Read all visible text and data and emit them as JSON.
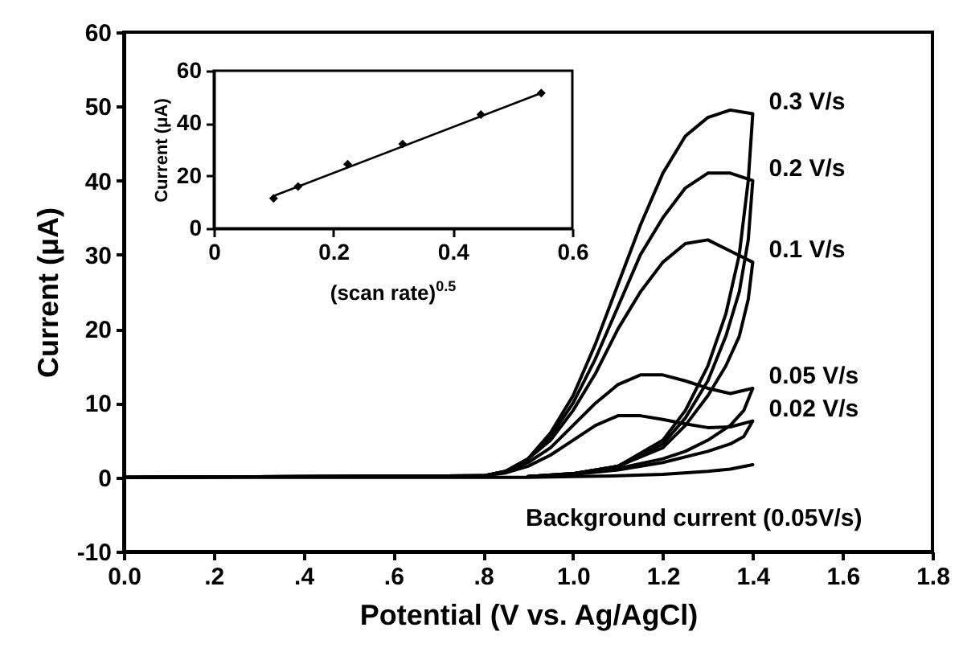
{
  "chart_data": [
    {
      "type": "line",
      "xlabel": "Potential (V vs. Ag/AgCl)",
      "ylabel": "Current (μA)",
      "xlim": [
        0,
        1.8
      ],
      "ylim": [
        -10,
        60
      ],
      "xticks": [
        {
          "value": 0,
          "label": "0.0"
        },
        {
          "value": 0.2,
          "label": ".2"
        },
        {
          "value": 0.4,
          "label": ".4"
        },
        {
          "value": 0.6,
          "label": ".6"
        },
        {
          "value": 0.8,
          "label": ".8"
        },
        {
          "value": 1,
          "label": "1.0"
        },
        {
          "value": 1.2,
          "label": "1.2"
        },
        {
          "value": 1.4,
          "label": "1.4"
        },
        {
          "value": 1.6,
          "label": "1.6"
        },
        {
          "value": 1.8,
          "label": "1.8"
        }
      ],
      "yticks": [
        -10,
        0,
        10,
        20,
        30,
        40,
        50,
        60
      ],
      "series": [
        {
          "name": "0.3 V/s",
          "color": "#000000",
          "x": [
            0,
            0.8,
            0.85,
            0.9,
            0.95,
            1.0,
            1.05,
            1.1,
            1.15,
            1.2,
            1.25,
            1.3,
            1.35,
            1.4,
            1.39,
            1.37,
            1.34,
            1.3,
            1.25,
            1.2,
            1.1,
            1.0,
            0.9
          ],
          "values": [
            0,
            0.2,
            0.8,
            2.5,
            6,
            11,
            18,
            26,
            34,
            41,
            46,
            48.5,
            49.5,
            49,
            40,
            30,
            22,
            15,
            9,
            5,
            1.5,
            0.5,
            0.1
          ]
        },
        {
          "name": "0.2 V/s",
          "color": "#000000",
          "x": [
            0,
            0.8,
            0.85,
            0.9,
            0.95,
            1.0,
            1.05,
            1.1,
            1.15,
            1.2,
            1.25,
            1.3,
            1.35,
            1.4,
            1.39,
            1.37,
            1.34,
            1.3,
            1.25,
            1.2,
            1.1,
            1.0,
            0.9
          ],
          "values": [
            0,
            0.2,
            0.8,
            2.5,
            5.5,
            10,
            16,
            23,
            30,
            35,
            39,
            41,
            41,
            40,
            32,
            25,
            19,
            13,
            8,
            4.5,
            1.5,
            0.5,
            0.1
          ]
        },
        {
          "name": "0.1 V/s",
          "color": "#000000",
          "x": [
            0,
            0.8,
            0.85,
            0.9,
            0.95,
            1.0,
            1.05,
            1.1,
            1.15,
            1.2,
            1.25,
            1.3,
            1.35,
            1.4,
            1.39,
            1.37,
            1.34,
            1.3,
            1.25,
            1.2,
            1.1,
            1.0,
            0.9
          ],
          "values": [
            0,
            0.2,
            0.8,
            2.5,
            5,
            9,
            14,
            20,
            25,
            29,
            31.5,
            32,
            30.5,
            29,
            24,
            19,
            15,
            11,
            7,
            4,
            1.5,
            0.5,
            0.1
          ]
        },
        {
          "name": "0.05 V/s",
          "color": "#000000",
          "x": [
            0,
            0.8,
            0.85,
            0.9,
            0.95,
            1.0,
            1.05,
            1.1,
            1.15,
            1.2,
            1.25,
            1.3,
            1.35,
            1.4,
            1.38,
            1.35,
            1.3,
            1.25,
            1.2,
            1.1,
            1.0,
            0.9
          ],
          "values": [
            0,
            0.2,
            0.7,
            2,
            4,
            7,
            10,
            12.5,
            13.8,
            13.8,
            13,
            12,
            11.3,
            12,
            9,
            7,
            5,
            3.5,
            2.5,
            1.2,
            0.4,
            0.1
          ]
        },
        {
          "name": "0.02 V/s",
          "color": "#000000",
          "x": [
            0,
            0.8,
            0.85,
            0.9,
            0.95,
            1.0,
            1.05,
            1.1,
            1.15,
            1.2,
            1.25,
            1.3,
            1.35,
            1.4,
            1.38,
            1.35,
            1.3,
            1.2,
            1.1,
            1.0,
            0.9
          ],
          "values": [
            0,
            0.2,
            0.6,
            1.5,
            3,
            5,
            7,
            8.3,
            8.3,
            7.8,
            7.2,
            6.7,
            6.8,
            7.6,
            5.5,
            4.5,
            3.5,
            2,
            1,
            0.4,
            0.1
          ]
        },
        {
          "color": "#000000",
          "x": [
            0,
            0.9,
            1.0,
            1.1,
            1.2,
            1.3,
            1.35,
            1.4
          ],
          "values": [
            0,
            0,
            0.1,
            0.2,
            0.4,
            0.8,
            1.1,
            1.7
          ]
        }
      ],
      "annotations": [
        "Background current (0.05V/s)"
      ]
    },
    {
      "type": "scatter",
      "xlabel": "(scan rate)$^{0.5}$",
      "ylabel": "Current (μA)",
      "xlim": [
        0,
        0.6
      ],
      "ylim": [
        0,
        60
      ],
      "xticks": [
        0,
        0.2,
        0.4,
        0.6
      ],
      "yticks": [
        0,
        20,
        40,
        60
      ],
      "series": [
        {
          "color": "#000000",
          "marker": "diamond",
          "x": [
            0.1,
            0.141,
            0.224,
            0.316,
            0.447,
            0.548
          ],
          "values": [
            11.4,
            15.9,
            24.4,
            32.1,
            43.3,
            51.5
          ]
        },
        {
          "type": "line",
          "color": "#000000",
          "x": [
            0.1,
            0.548
          ],
          "values": [
            12.3,
            51.5
          ]
        }
      ]
    }
  ]
}
